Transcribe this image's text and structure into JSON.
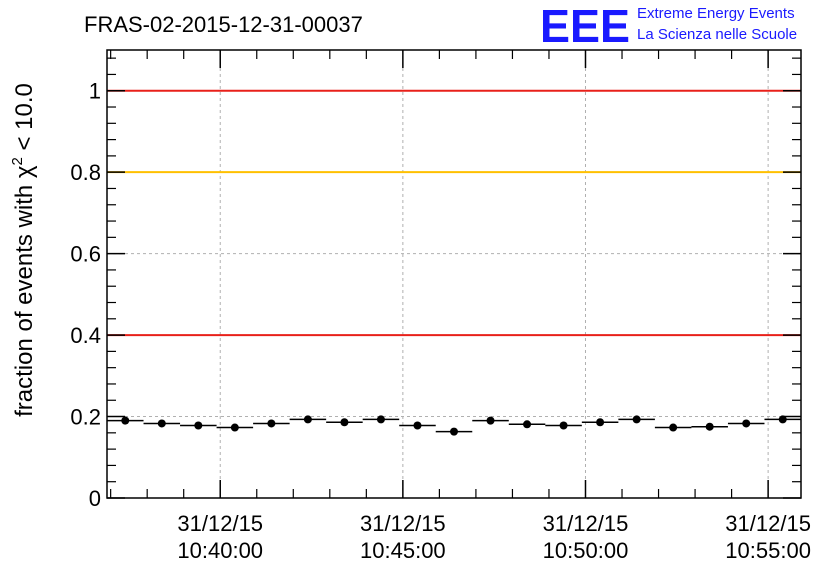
{
  "chart_data": {
    "type": "scatter",
    "title": "FRAS-02-2015-12-31-00037",
    "xlabel": "",
    "ylabel_main": "fraction of events with χ",
    "ylabel_sup": "2",
    "ylabel_tail": " < 10.0",
    "ylim": [
      0,
      1.1
    ],
    "yticks": [
      {
        "value": 0,
        "label": "0"
      },
      {
        "value": 0.2,
        "label": "0.2"
      },
      {
        "value": 0.4,
        "label": "0.4"
      },
      {
        "value": 0.6,
        "label": "0.6"
      },
      {
        "value": 0.8,
        "label": "0.8"
      },
      {
        "value": 1.0,
        "label": "1"
      }
    ],
    "xlim_minutes": [
      0,
      19
    ],
    "xticks": [
      {
        "minute": 3.1,
        "date": "31/12/15",
        "time": "10:40:00"
      },
      {
        "minute": 8.1,
        "date": "31/12/15",
        "time": "10:45:00"
      },
      {
        "minute": 13.1,
        "date": "31/12/15",
        "time": "10:50:00"
      },
      {
        "minute": 18.1,
        "date": "31/12/15",
        "time": "10:55:00"
      }
    ],
    "reference_lines": [
      {
        "y": 1.0,
        "color": "#e8201a"
      },
      {
        "y": 0.8,
        "color": "#ffc000"
      },
      {
        "y": 0.4,
        "color": "#e8201a"
      }
    ],
    "bin_width_minutes": 1,
    "series": [
      {
        "x": [
          0.5,
          1.5,
          2.5,
          3.5,
          4.5,
          5.5,
          6.5,
          7.5,
          8.5,
          9.5,
          10.5,
          11.5,
          12.5,
          13.5,
          14.5,
          15.5,
          16.5,
          17.5,
          18.5
        ],
        "values": [
          0.19,
          0.183,
          0.178,
          0.173,
          0.183,
          0.193,
          0.186,
          0.193,
          0.178,
          0.163,
          0.19,
          0.181,
          0.178,
          0.186,
          0.193,
          0.173,
          0.175,
          0.183,
          0.193
        ]
      }
    ],
    "grid": true
  },
  "logo": {
    "mark": "EEE",
    "line1": "Extreme Energy Events",
    "line2": "La Scienza nelle Scuole"
  },
  "colors": {
    "logo": "#1a1aff",
    "grid": "#b0b0b0",
    "marker": "#000000"
  }
}
